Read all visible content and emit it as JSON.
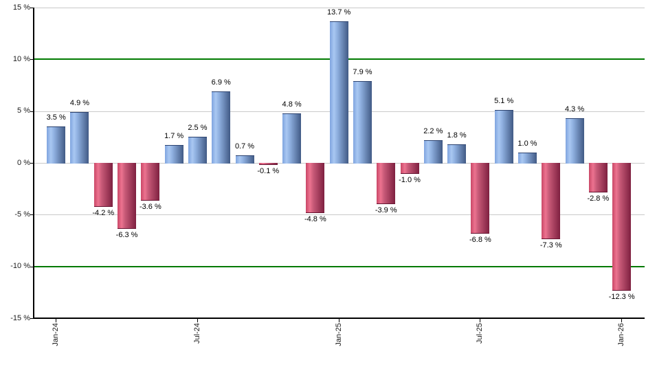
{
  "chart_data": {
    "type": "bar",
    "title": "",
    "xlabel": "",
    "ylabel": "",
    "grid": true,
    "legend": null,
    "y_axis": {
      "unit": "%",
      "min": -15,
      "max": 15,
      "ticks": [
        15,
        10,
        5,
        0,
        -5,
        -10,
        -15
      ],
      "tick_labels": [
        "15 %",
        "10 %",
        "5 %",
        "0 %",
        "-5 %",
        "-10 %",
        "-15 %"
      ],
      "highlight_lines": [
        10,
        -10
      ]
    },
    "x_axis": {
      "tick_labels": [
        "Jan-24",
        "Jul-24",
        "Jan-25",
        "Jul-25",
        "Jan-26"
      ],
      "tick_indices": [
        0,
        6,
        12,
        18,
        24
      ]
    },
    "values": [
      3.5,
      4.9,
      -4.2,
      -6.3,
      -3.6,
      1.7,
      2.5,
      6.9,
      0.7,
      -0.1,
      4.8,
      -4.8,
      13.7,
      7.9,
      -3.9,
      -1.0,
      2.2,
      1.8,
      -6.8,
      5.1,
      1.0,
      -7.3,
      4.3,
      -2.8,
      -12.3
    ],
    "value_labels": [
      "3.5 %",
      "4.9 %",
      "-4.2 %",
      "-6.3 %",
      "-3.6 %",
      "1.7 %",
      "2.5 %",
      "6.9 %",
      "0.7 %",
      "-0.1 %",
      "4.8 %",
      "-4.8 %",
      "13.7 %",
      "7.9 %",
      "-3.9 %",
      "-1.0 %",
      "2.2 %",
      "1.8 %",
      "-6.8 %",
      "5.1 %",
      "1.0 %",
      "-7.3 %",
      "4.3 %",
      "-2.8 %",
      "-12.3 %"
    ],
    "colors": {
      "positive_bar_light": "#a9c8f2",
      "positive_bar_dark": "#415a85",
      "negative_bar_light": "#ec7390",
      "negative_bar_dark": "#7e2040",
      "gridline": "#c9c9c9",
      "highlight_line": "#007a00",
      "axis": "#000000",
      "text": "#000000",
      "background": "#ffffff"
    }
  }
}
